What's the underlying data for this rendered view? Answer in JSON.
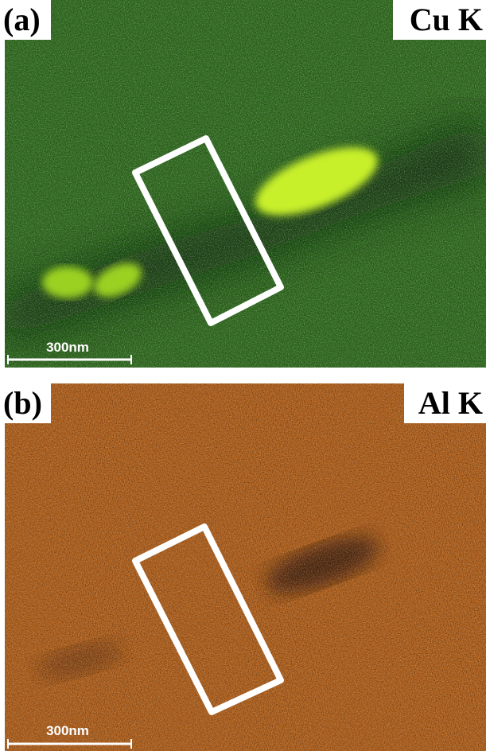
{
  "panels": [
    {
      "label": "(a)",
      "element": "Cu K",
      "scale_bar": "300nm"
    },
    {
      "label": "(b)",
      "element": "Al K",
      "scale_bar": "300nm"
    }
  ]
}
